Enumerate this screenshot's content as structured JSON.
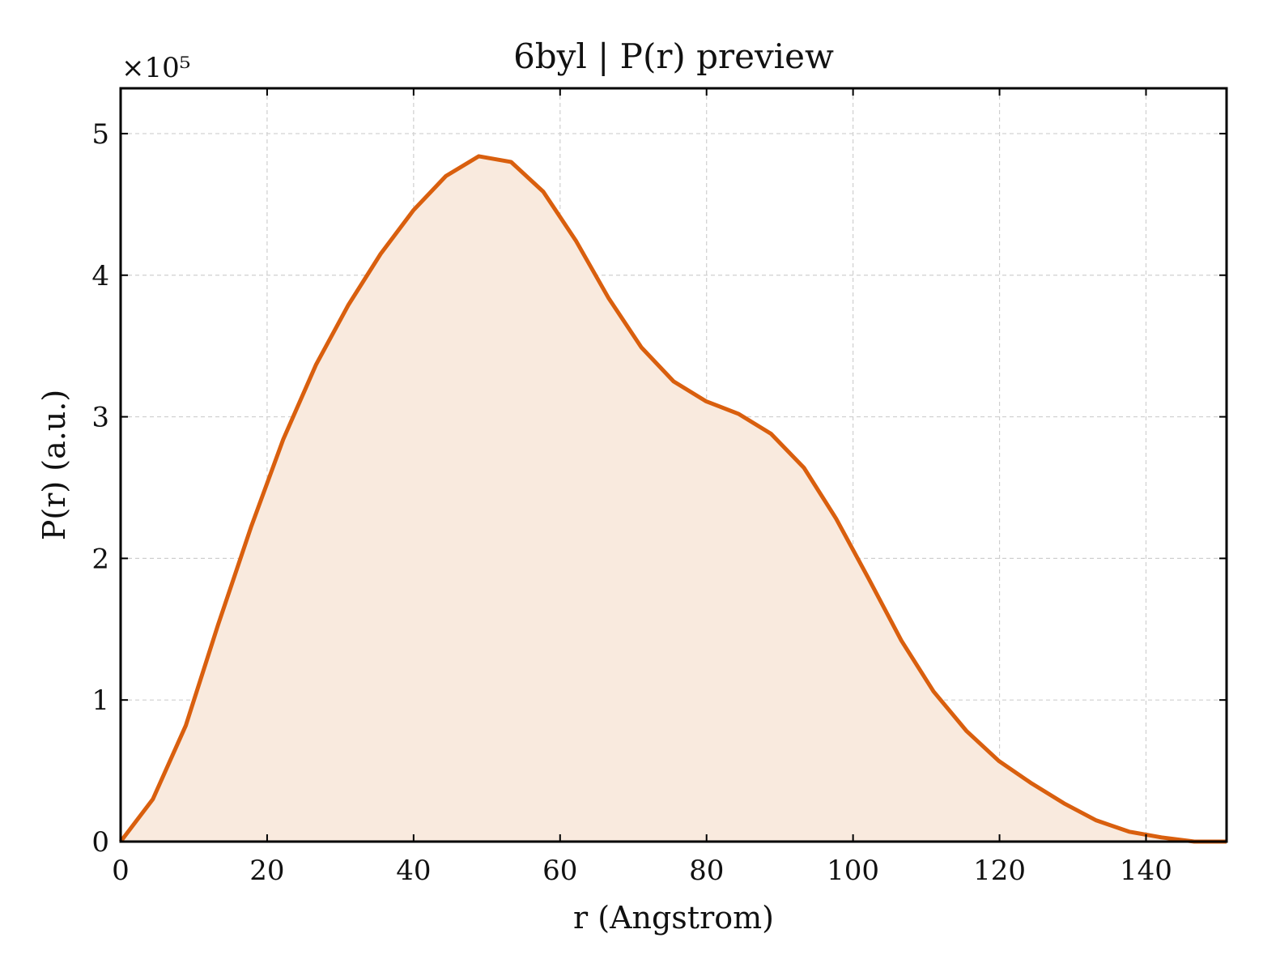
{
  "chart_data": {
    "type": "area",
    "title": "6byl | P(r) preview",
    "xlabel": "r (Angstrom)",
    "ylabel": "P(r) (a.u.)",
    "y_multiplier_label": "×10⁵",
    "xlim": [
      0,
      151
    ],
    "ylim": [
      0,
      5.32
    ],
    "x_ticks": [
      0,
      20,
      40,
      60,
      80,
      100,
      120,
      140
    ],
    "y_ticks": [
      0,
      1,
      2,
      3,
      4,
      5
    ],
    "grid": true,
    "colors": {
      "line": "#d95f0e",
      "fill": "#f9eade"
    },
    "series": [
      {
        "x": [
          0,
          4.4,
          8.9,
          13.3,
          17.8,
          22.2,
          26.7,
          31.1,
          35.5,
          40.0,
          44.4,
          48.9,
          53.3,
          57.7,
          62.2,
          66.6,
          71.1,
          75.5,
          79.9,
          84.4,
          88.8,
          93.3,
          97.7,
          102.1,
          106.6,
          111.0,
          115.5,
          119.9,
          124.4,
          128.8,
          133.2,
          137.7,
          142.1,
          146.6,
          151.0
        ],
        "y": [
          0.0,
          0.3,
          0.82,
          1.53,
          2.22,
          2.84,
          3.37,
          3.79,
          4.15,
          4.46,
          4.7,
          4.84,
          4.8,
          4.59,
          4.24,
          3.84,
          3.49,
          3.25,
          3.11,
          3.02,
          2.88,
          2.64,
          2.28,
          1.86,
          1.42,
          1.06,
          0.78,
          0.57,
          0.41,
          0.27,
          0.15,
          0.07,
          0.03,
          0.0,
          0.0
        ]
      }
    ]
  }
}
